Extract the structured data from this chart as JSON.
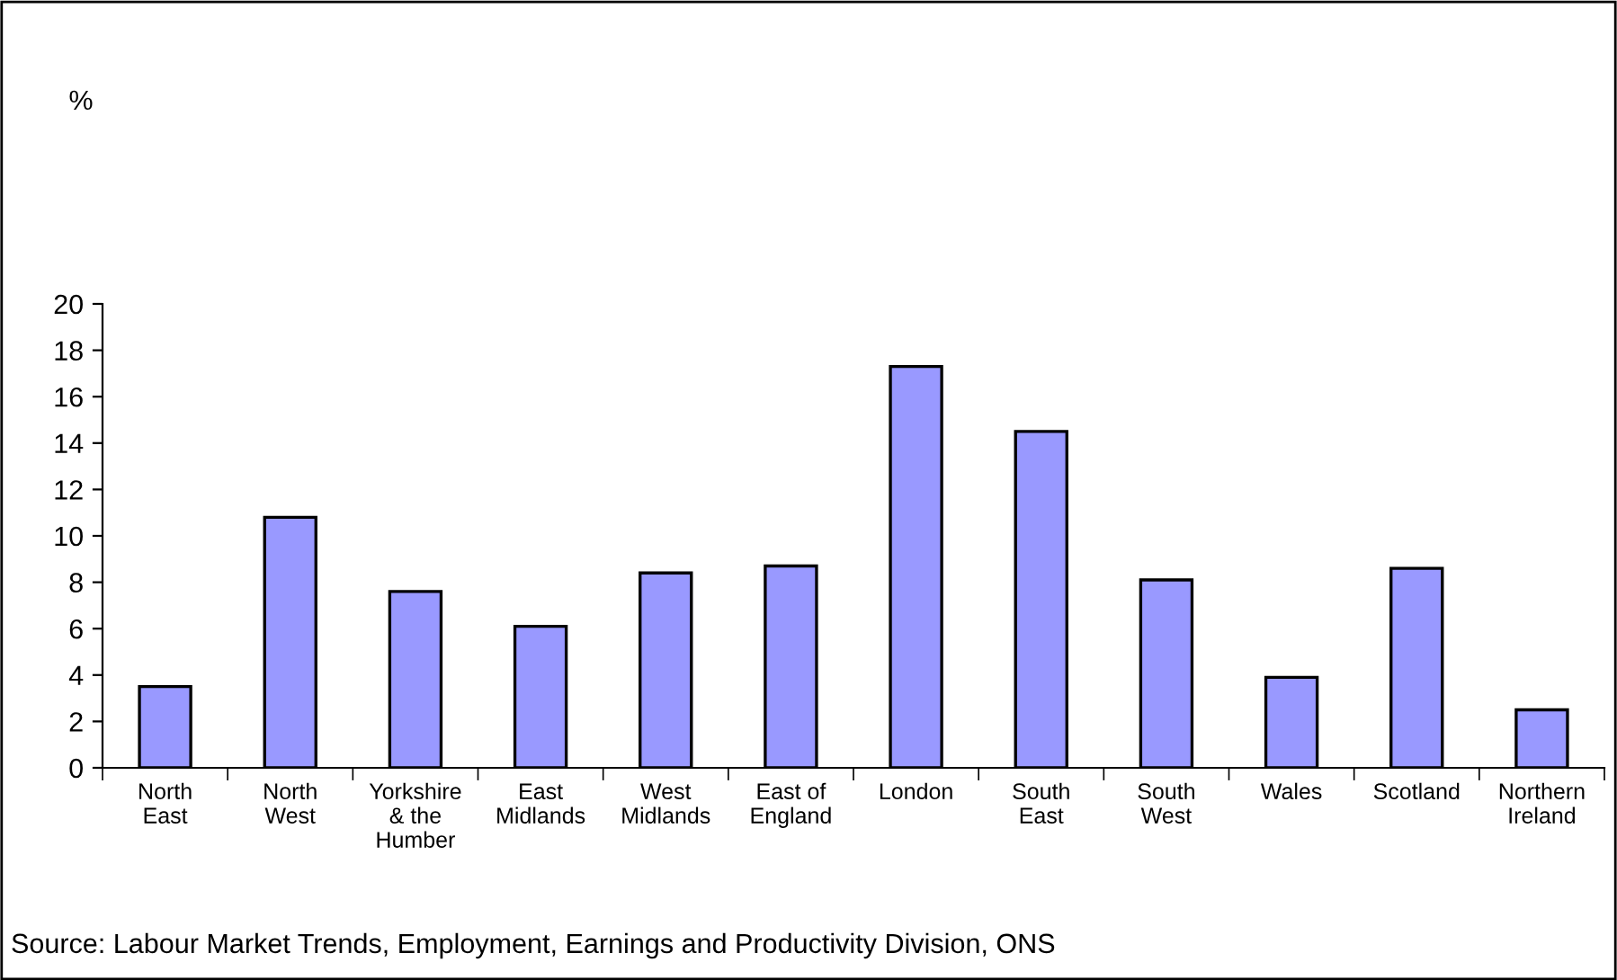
{
  "chart_data": {
    "type": "bar",
    "categories": [
      "North\nEast",
      "North\nWest",
      "Yorkshire\n& the\nHumber",
      "East\nMidlands",
      "West\nMidlands",
      "East of\nEngland",
      "London",
      "South\nEast",
      "South\nWest",
      "Wales",
      "Scotland",
      "Northern\nIreland"
    ],
    "values": [
      3.5,
      10.8,
      7.6,
      6.1,
      8.4,
      8.7,
      17.3,
      14.5,
      8.1,
      3.9,
      8.6,
      2.5
    ],
    "color": "#9999ff",
    "ylim": [
      0,
      20
    ],
    "yticks": [
      0,
      2,
      4,
      6,
      8,
      10,
      12,
      14,
      16,
      18,
      20
    ],
    "grid": false,
    "annotations": [
      "%",
      "Source: Labour Market Trends, Employment, Earnings and Productivity Division, ONS"
    ]
  }
}
